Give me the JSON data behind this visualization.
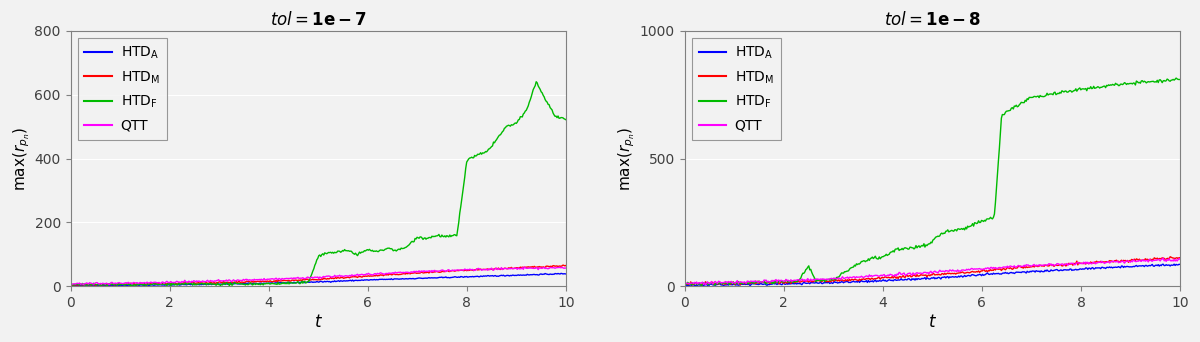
{
  "plot1": {
    "title_tol": "tol",
    "title_val": "1e−7",
    "ylim": [
      0,
      800
    ],
    "yticks": [
      0,
      200,
      400,
      600,
      800
    ],
    "xlim": [
      0,
      10
    ],
    "xticks": [
      0,
      2,
      4,
      6,
      8,
      10
    ]
  },
  "plot2": {
    "title_tol": "tol",
    "title_val": "1e−8",
    "ylim": [
      0,
      1000
    ],
    "yticks": [
      0,
      500,
      1000
    ],
    "xlim": [
      0,
      10
    ],
    "xticks": [
      0,
      2,
      4,
      6,
      8,
      10
    ]
  },
  "colors": {
    "HTD_A": "#0000ff",
    "HTD_M": "#ff0000",
    "HTD_F": "#00bb00",
    "QTT": "#ff00ff"
  },
  "xlabel": "t",
  "background_color": "#f2f2f2",
  "plot_bg": "#f2f2f2"
}
